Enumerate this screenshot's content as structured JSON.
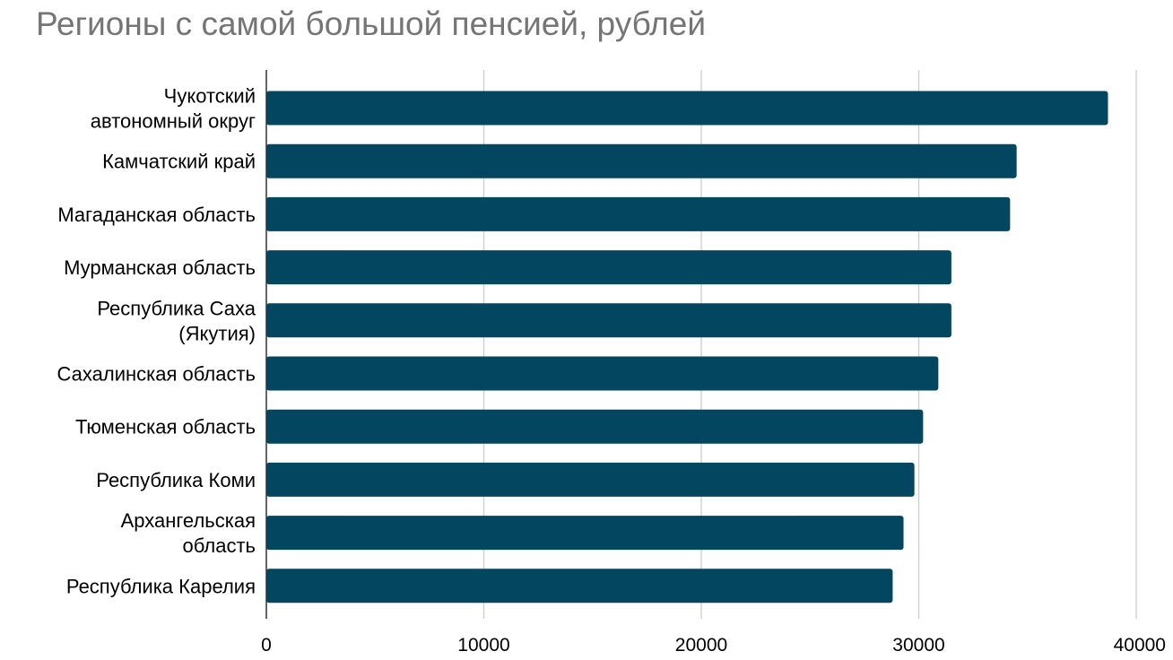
{
  "chart_data": {
    "type": "bar",
    "orientation": "horizontal",
    "title": "Регионы с самой большой пенсией, рублей",
    "xlabel": "",
    "ylabel": "",
    "categories": [
      "Чукотский автономный округ",
      "Камчатский край",
      "Магаданская область",
      "Мурманская область",
      "Республика Саха (Якутия)",
      "Сахалинская область",
      "Тюменская область",
      "Республика Коми",
      "Архангельская область",
      "Республика Карелия"
    ],
    "category_lines": [
      [
        "Чукотский",
        "автономный округ"
      ],
      [
        "Камчатский край"
      ],
      [
        "Магаданская область"
      ],
      [
        "Мурманская область"
      ],
      [
        "Республика Саха",
        "(Якутия)"
      ],
      [
        "Сахалинская область"
      ],
      [
        "Тюменская область"
      ],
      [
        "Республика Коми"
      ],
      [
        "Архангельская",
        "область"
      ],
      [
        "Республика Карелия"
      ]
    ],
    "values": [
      38700,
      34500,
      34200,
      31500,
      31500,
      30900,
      30200,
      29800,
      29300,
      28800
    ],
    "xlim": [
      0,
      40000
    ],
    "xticks": [
      0,
      10000,
      20000,
      30000,
      40000
    ],
    "grid": true,
    "legend": "none",
    "bar_color": "#03465f",
    "grid_color": "#cccccc",
    "axis_color": "#333333"
  }
}
